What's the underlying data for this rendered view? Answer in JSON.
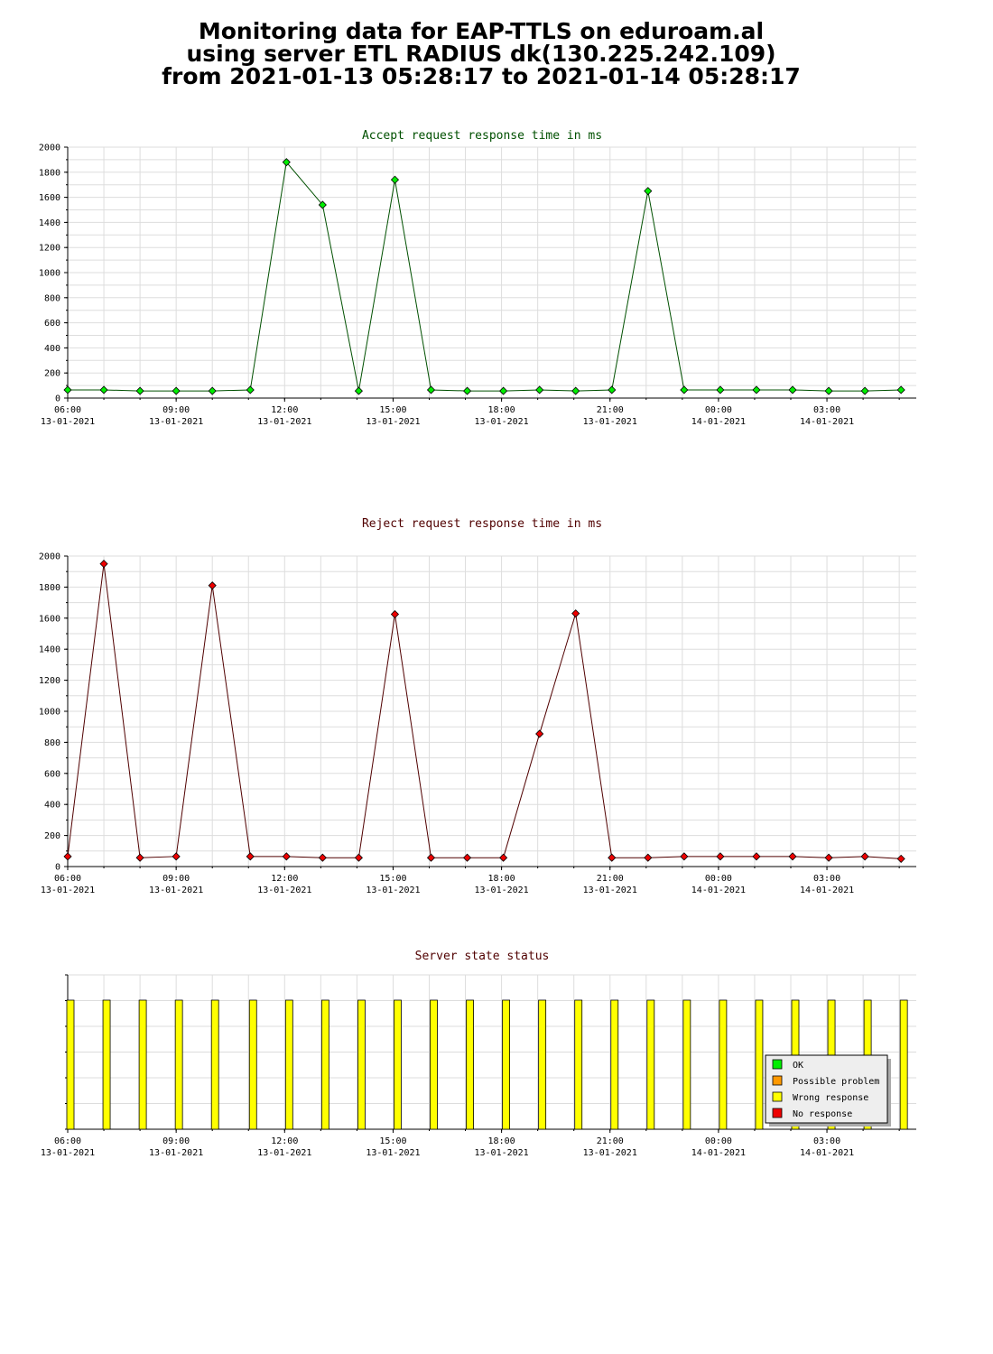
{
  "header": {
    "line1": "Monitoring data for EAP-TTLS on eduroam.al",
    "line2": "using server ETL RADIUS dk(130.225.242.109)",
    "line3": "from 2021-01-13 05:28:17 to 2021-01-14 05:28:17"
  },
  "x_axis": {
    "ticks": [
      {
        "time": "06:00",
        "date": "13-01-2021",
        "hours": 0
      },
      {
        "time": "09:00",
        "date": "13-01-2021",
        "hours": 3
      },
      {
        "time": "12:00",
        "date": "13-01-2021",
        "hours": 6
      },
      {
        "time": "15:00",
        "date": "13-01-2021",
        "hours": 9
      },
      {
        "time": "18:00",
        "date": "13-01-2021",
        "hours": 12
      },
      {
        "time": "21:00",
        "date": "13-01-2021",
        "hours": 15
      },
      {
        "time": "00:00",
        "date": "14-01-2021",
        "hours": 18
      },
      {
        "time": "03:00",
        "date": "14-01-2021",
        "hours": 21
      }
    ]
  },
  "chart_data": [
    {
      "type": "line",
      "title": "Accept request response time in ms",
      "title_color": "#005000",
      "line_color": "#005000",
      "marker_color": "#00ee00",
      "ylim": [
        0,
        2000
      ],
      "yticks": [
        0,
        200,
        400,
        600,
        800,
        1000,
        1200,
        1400,
        1600,
        1800,
        2000
      ],
      "x_hours": [
        0.0,
        1.0,
        2.0,
        3.0,
        4.0,
        5.05,
        6.05,
        7.05,
        8.05,
        9.05,
        10.05,
        11.05,
        12.05,
        13.05,
        14.05,
        15.05,
        16.05,
        17.05,
        18.05,
        19.05,
        20.05,
        21.05,
        22.05,
        23.05
      ],
      "values": [
        65,
        65,
        57,
        57,
        57,
        65,
        1880,
        1540,
        57,
        1740,
        65,
        57,
        57,
        65,
        57,
        65,
        1650,
        65,
        65,
        65,
        65,
        57,
        57,
        65
      ]
    },
    {
      "type": "line",
      "title": "Reject request response time in ms",
      "title_color": "#500000",
      "line_color": "#500000",
      "marker_color": "#ee0000",
      "ylim": [
        0,
        2000
      ],
      "yticks": [
        0,
        200,
        400,
        600,
        800,
        1000,
        1200,
        1400,
        1600,
        1800,
        2000
      ],
      "x_hours": [
        0.0,
        1.0,
        2.0,
        3.0,
        4.0,
        5.05,
        6.05,
        7.05,
        8.05,
        9.05,
        10.05,
        11.05,
        12.05,
        13.05,
        14.05,
        15.05,
        16.05,
        17.05,
        18.05,
        19.05,
        20.05,
        21.05,
        22.05,
        23.05
      ],
      "values": [
        65,
        1950,
        57,
        65,
        1810,
        65,
        65,
        57,
        57,
        1625,
        57,
        57,
        57,
        855,
        1630,
        57,
        57,
        65,
        65,
        65,
        65,
        57,
        65,
        50
      ]
    },
    {
      "type": "bar",
      "title": "Server state status",
      "title_color": "#500000",
      "x_hours": [
        0.0,
        1.0,
        2.0,
        3.0,
        4.0,
        5.05,
        6.05,
        7.05,
        8.05,
        9.05,
        10.05,
        11.05,
        12.05,
        13.05,
        14.05,
        15.05,
        16.05,
        17.05,
        18.05,
        19.05,
        20.05,
        21.05,
        22.05,
        23.05
      ],
      "states": [
        "Wrong response",
        "Wrong response",
        "Wrong response",
        "Wrong response",
        "Wrong response",
        "Wrong response",
        "Wrong response",
        "Wrong response",
        "Wrong response",
        "Wrong response",
        "Wrong response",
        "Wrong response",
        "Wrong response",
        "Wrong response",
        "Wrong response",
        "Wrong response",
        "Wrong response",
        "Wrong response",
        "Wrong response",
        "Wrong response",
        "Wrong response",
        "Wrong response",
        "Wrong response",
        "Wrong response"
      ],
      "legend": [
        {
          "label": "OK",
          "color": "#00ee00"
        },
        {
          "label": "Possible problem",
          "color": "#ff9900"
        },
        {
          "label": "Wrong response",
          "color": "#ffff00"
        },
        {
          "label": "No response",
          "color": "#ee0000"
        }
      ],
      "legend_placement": "bottom-right"
    }
  ]
}
